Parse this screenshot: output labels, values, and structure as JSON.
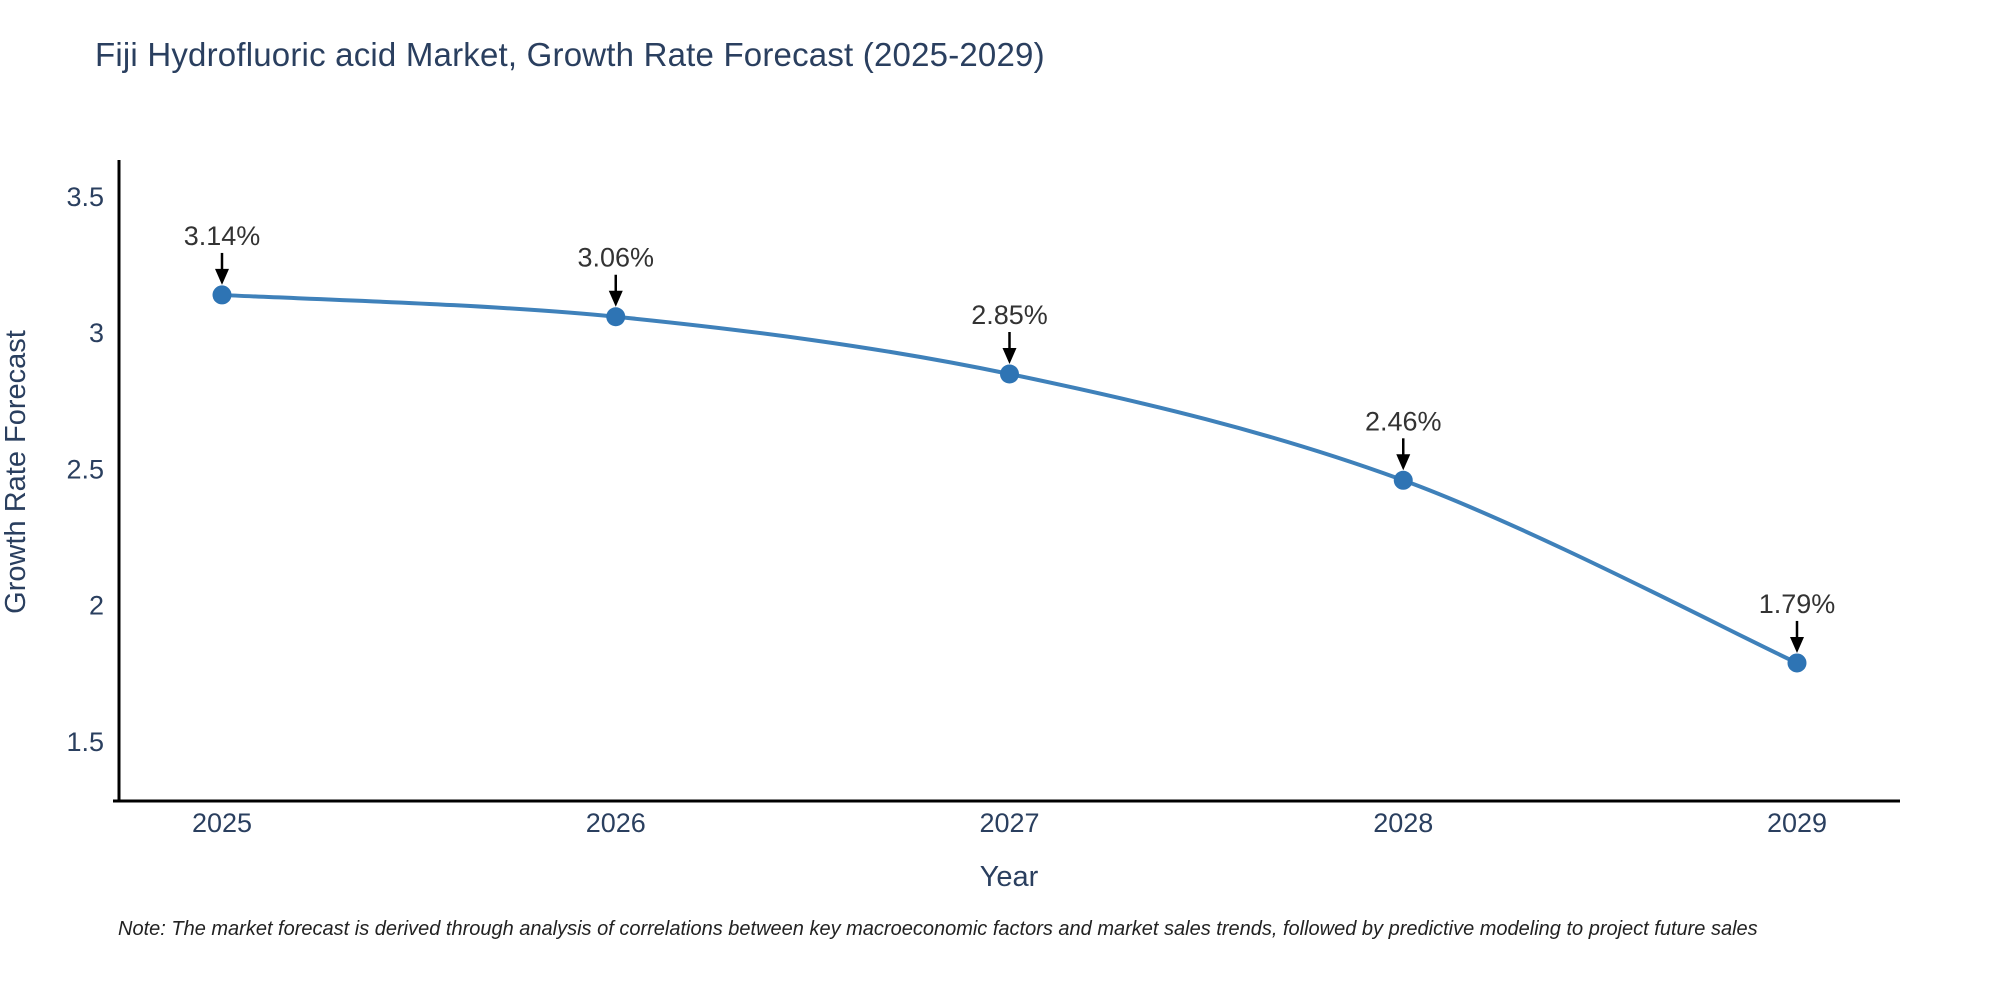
{
  "title": "Fiji Hydrofluoric acid Market, Growth Rate Forecast (2025-2029)",
  "note": "Note: The market forecast is derived through analysis of correlations between key macroeconomic factors and market sales trends, followed by predictive modeling to project future sales",
  "chart_data": {
    "type": "line",
    "x": [
      2025,
      2026,
      2027,
      2028,
      2029
    ],
    "y": [
      3.14,
      3.06,
      2.85,
      2.46,
      1.79
    ],
    "point_labels": [
      "3.14%",
      "3.06%",
      "2.85%",
      "2.46%",
      "1.79%"
    ],
    "x_tick_labels": [
      "2025",
      "2026",
      "2027",
      "2028",
      "2029"
    ],
    "y_tick_values": [
      3.5,
      3,
      2.5,
      2,
      1.5
    ],
    "y_tick_labels": [
      "3.5",
      "3",
      "2.5",
      "2",
      "1.5"
    ],
    "xlabel": "Year",
    "ylabel": "Growth Rate Forecast",
    "xlim": [
      2024.74,
      2029.26
    ],
    "ylim": [
      1.28,
      3.64
    ],
    "line_shape": "spline",
    "grid": false,
    "legend": false,
    "colors": {
      "line": "#3f81ba",
      "marker": "#2e74b4",
      "axis": "#000000",
      "tick_text": "#2a3f5f",
      "annotation_text": "#333333",
      "arrow": "#000000"
    }
  }
}
